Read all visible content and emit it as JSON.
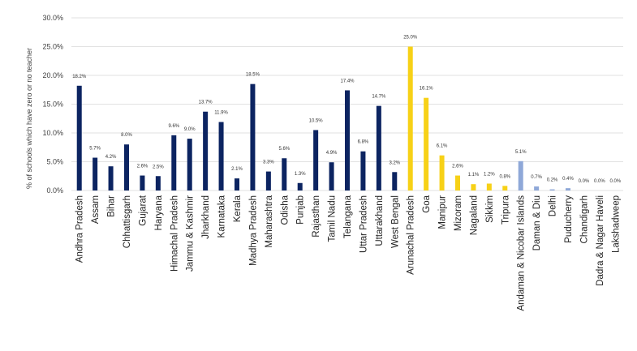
{
  "chart_data": {
    "type": "bar",
    "title": "",
    "xlabel": "",
    "ylabel": "% of schools which have zero or no teacher",
    "ylim": [
      0,
      30
    ],
    "yticks": [
      "0.0%",
      "5.0%",
      "10.0%",
      "15.0%",
      "20.0%",
      "25.0%",
      "30.0%"
    ],
    "grid": true,
    "legend": "none",
    "colors": {
      "navy": "#0c2461",
      "yellow": "#f7d117",
      "lightblue": "#8fa8d8"
    },
    "categories": [
      "Andhra Pradesh",
      "Assam",
      "Bihar",
      "Chhattisgarh",
      "Gujarat",
      "Haryana",
      "Himachal Pradesh",
      "Jammu & Kashmir",
      "Jharkhand",
      "Karnataka",
      "Kerala",
      "Madhya Pradesh",
      "Maharashtra",
      "Odisha",
      "Punjab",
      "Rajasthan",
      "Tamil Nadu",
      "Telangana",
      "Uttar Pradesh",
      "Uttarakhand",
      "West Bengal",
      "Arunachal Pradesh",
      "Goa",
      "Manipur",
      "Mizoram",
      "Nagaland",
      "Sikkim",
      "Tripura",
      "Andaman & Nicobar Islands",
      "Daman & Diu",
      "Delhi",
      "Puducherry",
      "Chandigarh",
      "Dadra & Nagar Haveli",
      "Lakshadweep"
    ],
    "values": [
      18.2,
      5.7,
      4.2,
      8.0,
      2.6,
      2.5,
      9.6,
      9.0,
      13.7,
      11.9,
      2.1,
      18.5,
      3.3,
      5.6,
      1.3,
      10.5,
      4.9,
      17.4,
      6.8,
      14.7,
      3.2,
      25.0,
      16.1,
      6.1,
      2.6,
      1.1,
      1.2,
      0.8,
      5.1,
      0.7,
      0.2,
      0.4,
      0.0,
      0.0,
      0.0
    ],
    "data_labels": [
      "18.2%",
      "5.7%",
      "4.2%",
      "8.0%",
      "2.6%",
      "2.5%",
      "9.6%",
      "9.0%",
      "13.7%",
      "11.9%",
      "2.1%",
      "18.5%",
      "3.3%",
      "5.6%",
      "1.3%",
      "10.5%",
      "4.9%",
      "17.4%",
      "6.8%",
      "14.7%",
      "3.2%",
      "25.0%",
      "16.1%",
      "6.1%",
      "2.6%",
      "1.1%",
      "1.2%",
      "0.8%",
      "5.1%",
      "0.7%",
      "0.2%",
      "0.4%",
      "0.0%",
      "0.0%",
      "0.0%"
    ],
    "bar_colors": [
      "navy",
      "navy",
      "navy",
      "navy",
      "navy",
      "navy",
      "navy",
      "navy",
      "navy",
      "navy",
      "navy",
      "navy",
      "navy",
      "navy",
      "navy",
      "navy",
      "navy",
      "navy",
      "navy",
      "navy",
      "navy",
      "yellow",
      "yellow",
      "yellow",
      "yellow",
      "yellow",
      "yellow",
      "yellow",
      "lightblue",
      "lightblue",
      "lightblue",
      "lightblue",
      "lightblue",
      "lightblue",
      "lightblue"
    ]
  }
}
